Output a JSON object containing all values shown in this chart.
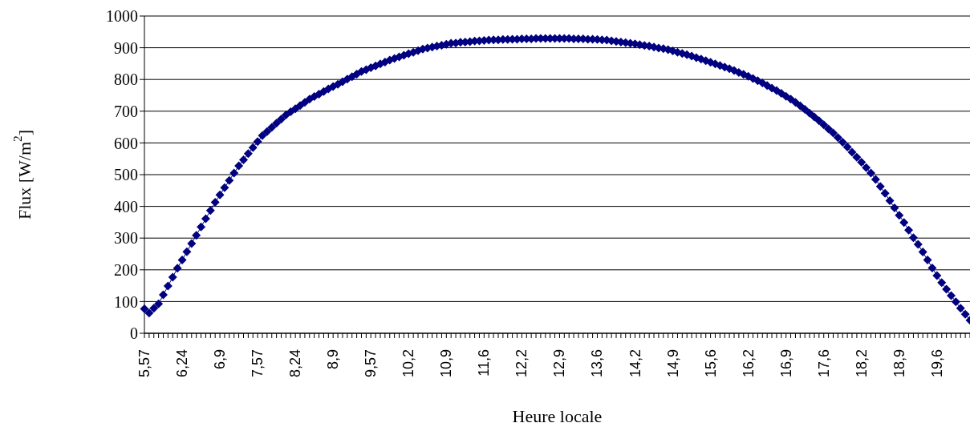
{
  "chart_data": {
    "type": "line",
    "xlabel": "Heure locale",
    "ylabel": "Flux [W/m$^{2}$]",
    "categories": [
      "5,57",
      null,
      null,
      null,
      null,
      null,
      null,
      null,
      "6,24",
      null,
      null,
      null,
      null,
      null,
      null,
      null,
      "6,9",
      null,
      null,
      null,
      null,
      null,
      null,
      null,
      "7,57",
      null,
      null,
      null,
      null,
      null,
      null,
      null,
      "8,24",
      null,
      null,
      null,
      null,
      null,
      null,
      null,
      "8,9",
      null,
      null,
      null,
      null,
      null,
      null,
      null,
      "9,57",
      null,
      null,
      null,
      null,
      null,
      null,
      null,
      "10,2",
      null,
      null,
      null,
      null,
      null,
      null,
      null,
      "10,9",
      null,
      null,
      null,
      null,
      null,
      null,
      null,
      "11,6",
      null,
      null,
      null,
      null,
      null,
      null,
      null,
      "12,2",
      null,
      null,
      null,
      null,
      null,
      null,
      null,
      "12,9",
      null,
      null,
      null,
      null,
      null,
      null,
      null,
      "13,6",
      null,
      null,
      null,
      null,
      null,
      null,
      null,
      "14,2",
      null,
      null,
      null,
      null,
      null,
      null,
      null,
      "14,9",
      null,
      null,
      null,
      null,
      null,
      null,
      null,
      "15,6",
      null,
      null,
      null,
      null,
      null,
      null,
      null,
      "16,2",
      null,
      null,
      null,
      null,
      null,
      null,
      null,
      "16,9",
      null,
      null,
      null,
      null,
      null,
      null,
      null,
      "17,6",
      null,
      null,
      null,
      null,
      null,
      null,
      null,
      "18,2",
      null,
      null,
      null,
      null,
      null,
      null,
      null,
      "18,9",
      null,
      null,
      null,
      null,
      null,
      null,
      null,
      "19,6",
      null,
      null,
      null,
      null,
      null,
      null,
      null
    ],
    "series": [
      {
        "color": "#000080",
        "values": [
          77,
          64,
          79,
          93,
          121,
          149,
          177,
          205,
          231,
          257,
          283,
          309,
          335,
          361,
          387,
          413,
          436,
          459,
          482,
          505,
          528,
          547,
          566,
          585,
          604,
          623,
          636,
          649,
          662,
          675,
          688,
          698,
          708,
          718,
          728,
          738,
          746,
          754,
          762,
          770,
          778,
          785,
          793,
          801,
          809,
          817,
          825,
          831,
          837,
          843,
          849,
          855,
          861,
          866,
          871,
          876,
          881,
          886,
          891,
          896,
          899,
          902,
          905,
          908,
          911,
          914,
          915,
          917,
          918,
          919,
          921,
          922,
          923,
          924,
          925,
          925,
          926,
          926,
          927,
          927,
          928,
          928,
          928,
          929,
          929,
          929,
          929,
          929,
          929,
          929,
          929,
          928,
          928,
          928,
          927,
          927,
          926,
          925,
          924,
          922,
          920,
          918,
          916,
          914,
          912,
          910,
          907,
          905,
          902,
          899,
          897,
          894,
          890,
          886,
          882,
          878,
          874,
          869,
          864,
          859,
          854,
          849,
          844,
          839,
          834,
          828,
          822,
          816,
          810,
          803,
          796,
          789,
          781,
          773,
          765,
          756,
          747,
          738,
          728,
          717,
          706,
          694,
          682,
          670,
          657,
          644,
          631,
          617,
          602,
          587,
          571,
          555,
          539,
          522,
          505,
          485,
          463,
          441,
          418,
          395,
          372,
          349,
          325,
          301,
          280,
          256,
          231,
          206,
          182,
          160,
          139,
          119,
          99,
          79,
          60,
          41
        ]
      }
    ],
    "ylim": [
      0,
      1000
    ],
    "yticks": [
      0,
      100,
      200,
      300,
      400,
      500,
      600,
      700,
      800,
      900,
      1000
    ],
    "grid": "y",
    "marker": "diamond"
  }
}
